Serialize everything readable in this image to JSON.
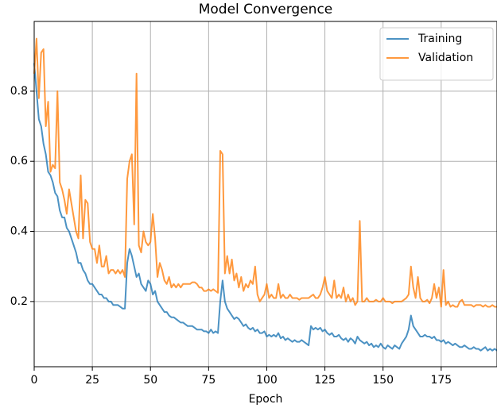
{
  "chart_data": {
    "type": "line",
    "title": "Model Convergence",
    "xlabel": "Epoch",
    "x": [
      0,
      1,
      2,
      3,
      4,
      5,
      6,
      7,
      8,
      9,
      10,
      11,
      12,
      13,
      14,
      15,
      16,
      17,
      18,
      19,
      20,
      21,
      22,
      23,
      24,
      25,
      26,
      27,
      28,
      29,
      30,
      31,
      32,
      33,
      34,
      35,
      36,
      37,
      38,
      39,
      40,
      41,
      42,
      43,
      44,
      45,
      46,
      47,
      48,
      49,
      50,
      51,
      52,
      53,
      54,
      55,
      56,
      57,
      58,
      59,
      60,
      61,
      62,
      63,
      64,
      65,
      66,
      67,
      68,
      69,
      70,
      71,
      72,
      73,
      74,
      75,
      76,
      77,
      78,
      79,
      80,
      81,
      82,
      83,
      84,
      85,
      86,
      87,
      88,
      89,
      90,
      91,
      92,
      93,
      94,
      95,
      96,
      97,
      98,
      99,
      100,
      101,
      102,
      103,
      104,
      105,
      106,
      107,
      108,
      109,
      110,
      111,
      112,
      113,
      114,
      115,
      116,
      117,
      118,
      119,
      120,
      121,
      122,
      123,
      124,
      125,
      126,
      127,
      128,
      129,
      130,
      131,
      132,
      133,
      134,
      135,
      136,
      137,
      138,
      139,
      140,
      141,
      142,
      143,
      144,
      145,
      146,
      147,
      148,
      149,
      150,
      151,
      152,
      153,
      154,
      155,
      156,
      157,
      158,
      159,
      160,
      161,
      162,
      163,
      164,
      165,
      166,
      167,
      168,
      169,
      170,
      171,
      172,
      173,
      174,
      175,
      176,
      177,
      178,
      179,
      180,
      181,
      182,
      183,
      184,
      185,
      186,
      187,
      188,
      189,
      190,
      191,
      192,
      193,
      194,
      195,
      196,
      197,
      198,
      199
    ],
    "series": [
      {
        "name": "Training",
        "color": "#1f77b4",
        "values": [
          0.88,
          0.8,
          0.72,
          0.7,
          0.65,
          0.62,
          0.57,
          0.56,
          0.54,
          0.51,
          0.5,
          0.46,
          0.44,
          0.44,
          0.41,
          0.4,
          0.38,
          0.36,
          0.34,
          0.31,
          0.31,
          0.29,
          0.28,
          0.26,
          0.25,
          0.25,
          0.24,
          0.23,
          0.22,
          0.22,
          0.21,
          0.21,
          0.2,
          0.2,
          0.19,
          0.19,
          0.19,
          0.185,
          0.18,
          0.18,
          0.31,
          0.35,
          0.33,
          0.3,
          0.27,
          0.28,
          0.25,
          0.24,
          0.23,
          0.26,
          0.25,
          0.22,
          0.23,
          0.2,
          0.19,
          0.18,
          0.17,
          0.17,
          0.16,
          0.155,
          0.155,
          0.15,
          0.145,
          0.14,
          0.14,
          0.135,
          0.13,
          0.13,
          0.13,
          0.125,
          0.12,
          0.12,
          0.12,
          0.115,
          0.115,
          0.11,
          0.12,
          0.11,
          0.115,
          0.11,
          0.2,
          0.26,
          0.2,
          0.18,
          0.17,
          0.16,
          0.15,
          0.155,
          0.15,
          0.14,
          0.13,
          0.135,
          0.125,
          0.12,
          0.125,
          0.115,
          0.12,
          0.11,
          0.11,
          0.115,
          0.1,
          0.105,
          0.1,
          0.105,
          0.1,
          0.11,
          0.095,
          0.1,
          0.09,
          0.095,
          0.09,
          0.085,
          0.09,
          0.085,
          0.085,
          0.09,
          0.085,
          0.08,
          0.075,
          0.13,
          0.12,
          0.125,
          0.12,
          0.125,
          0.115,
          0.12,
          0.11,
          0.105,
          0.11,
          0.1,
          0.1,
          0.105,
          0.095,
          0.09,
          0.095,
          0.085,
          0.095,
          0.09,
          0.08,
          0.1,
          0.09,
          0.085,
          0.08,
          0.085,
          0.075,
          0.08,
          0.07,
          0.075,
          0.07,
          0.08,
          0.07,
          0.065,
          0.075,
          0.07,
          0.065,
          0.075,
          0.07,
          0.065,
          0.08,
          0.09,
          0.1,
          0.12,
          0.16,
          0.13,
          0.12,
          0.11,
          0.1,
          0.1,
          0.105,
          0.1,
          0.1,
          0.095,
          0.1,
          0.09,
          0.09,
          0.085,
          0.09,
          0.08,
          0.085,
          0.08,
          0.075,
          0.08,
          0.075,
          0.07,
          0.07,
          0.075,
          0.07,
          0.065,
          0.065,
          0.07,
          0.065,
          0.065,
          0.06,
          0.065,
          0.07,
          0.06,
          0.065,
          0.06,
          0.065,
          0.06
        ]
      },
      {
        "name": "Validation",
        "color": "#ff7f0e",
        "values": [
          0.85,
          0.95,
          0.78,
          0.91,
          0.92,
          0.7,
          0.77,
          0.57,
          0.59,
          0.58,
          0.8,
          0.54,
          0.52,
          0.49,
          0.45,
          0.52,
          0.48,
          0.44,
          0.4,
          0.38,
          0.56,
          0.38,
          0.49,
          0.48,
          0.37,
          0.35,
          0.35,
          0.31,
          0.36,
          0.3,
          0.3,
          0.33,
          0.28,
          0.29,
          0.29,
          0.28,
          0.29,
          0.28,
          0.29,
          0.27,
          0.55,
          0.6,
          0.62,
          0.42,
          0.85,
          0.36,
          0.34,
          0.4,
          0.37,
          0.36,
          0.37,
          0.45,
          0.38,
          0.27,
          0.31,
          0.29,
          0.26,
          0.25,
          0.27,
          0.24,
          0.25,
          0.24,
          0.25,
          0.24,
          0.25,
          0.25,
          0.25,
          0.25,
          0.255,
          0.255,
          0.25,
          0.24,
          0.24,
          0.23,
          0.23,
          0.235,
          0.23,
          0.235,
          0.23,
          0.225,
          0.63,
          0.62,
          0.28,
          0.33,
          0.28,
          0.32,
          0.26,
          0.28,
          0.24,
          0.27,
          0.23,
          0.25,
          0.24,
          0.26,
          0.25,
          0.3,
          0.22,
          0.2,
          0.21,
          0.22,
          0.25,
          0.21,
          0.22,
          0.21,
          0.21,
          0.25,
          0.21,
          0.22,
          0.21,
          0.21,
          0.22,
          0.21,
          0.21,
          0.21,
          0.205,
          0.21,
          0.21,
          0.21,
          0.21,
          0.215,
          0.22,
          0.21,
          0.21,
          0.22,
          0.24,
          0.27,
          0.23,
          0.22,
          0.21,
          0.26,
          0.21,
          0.22,
          0.21,
          0.24,
          0.2,
          0.22,
          0.2,
          0.21,
          0.19,
          0.2,
          0.43,
          0.2,
          0.2,
          0.21,
          0.2,
          0.2,
          0.2,
          0.205,
          0.2,
          0.2,
          0.21,
          0.2,
          0.2,
          0.2,
          0.195,
          0.2,
          0.2,
          0.2,
          0.2,
          0.205,
          0.21,
          0.22,
          0.3,
          0.24,
          0.21,
          0.27,
          0.21,
          0.2,
          0.2,
          0.205,
          0.195,
          0.21,
          0.25,
          0.21,
          0.24,
          0.185,
          0.29,
          0.19,
          0.2,
          0.185,
          0.19,
          0.185,
          0.185,
          0.2,
          0.205,
          0.19,
          0.19,
          0.19,
          0.19,
          0.185,
          0.19,
          0.19,
          0.19,
          0.185,
          0.19,
          0.185,
          0.185,
          0.19,
          0.185,
          0.185
        ]
      }
    ],
    "xlim": [
      0,
      199
    ],
    "ylim": [
      0.014,
      0.999
    ],
    "xticks": [
      0,
      25,
      50,
      75,
      100,
      125,
      150,
      175
    ],
    "yticks": [
      0.2,
      0.4,
      0.6,
      0.8
    ],
    "grid": true,
    "legend": "upper right"
  }
}
